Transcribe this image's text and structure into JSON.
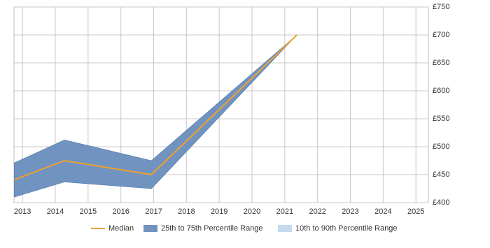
{
  "chart_data": {
    "type": "range-line",
    "x": [
      2012.75,
      2014.28,
      2016.93,
      2021.37
    ],
    "series": [
      {
        "name": "Median",
        "color": "#f0a030",
        "values": [
          441,
          475,
          450,
          700
        ]
      },
      {
        "name": "25th to 75th Percentile Range",
        "color": "#7093c0",
        "low": [
          410,
          437,
          425,
          700
        ],
        "high": [
          471,
          512,
          475,
          700
        ]
      },
      {
        "name": "10th to 90th Percentile Range",
        "color": "#c6daee"
      }
    ],
    "xlim": [
      2012.74,
      2025.38
    ],
    "xticks": [
      2013,
      2014,
      2015,
      2016,
      2017,
      2018,
      2019,
      2020,
      2021,
      2022,
      2023,
      2024,
      2025
    ],
    "ylim": [
      400,
      750
    ],
    "yticks": [
      {
        "value": 400,
        "label": "£400"
      },
      {
        "value": 450,
        "label": "£450"
      },
      {
        "value": 500,
        "label": "£500"
      },
      {
        "value": 550,
        "label": "£550"
      },
      {
        "value": 600,
        "label": "£600"
      },
      {
        "value": 650,
        "label": "£650"
      },
      {
        "value": 700,
        "label": "£700"
      },
      {
        "value": 750,
        "label": "£750"
      }
    ],
    "grid": true
  }
}
